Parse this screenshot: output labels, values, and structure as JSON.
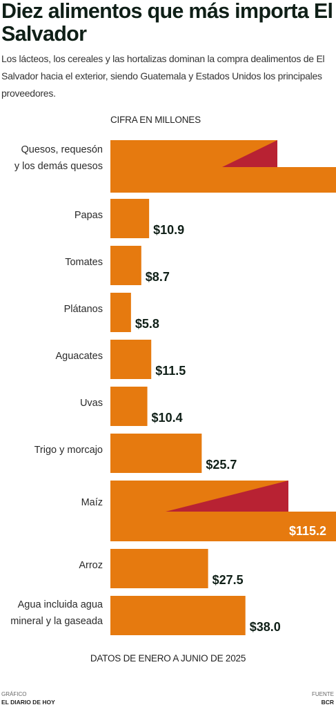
{
  "header": {
    "title": "Diez alimentos que más importa El Salvador",
    "subtitle": "Los lácteos, los cereales y las hortalizas dominan la compra dealimentos de El Salvador hacia el exterior, siendo Guatemala y Estados Unidos los principales proveedores."
  },
  "units_label": "CIFRA EN MILLONES",
  "note": "DATOS DE ENERO A JUNIO DE 2025",
  "footer": {
    "credit_label": "GRÁFICO",
    "credit_name": "EL DIARIO DE HOY",
    "source_label": "FUENTE",
    "source_name": "BCR"
  },
  "colors": {
    "bar": "#e67a0f",
    "accent": "#b82233",
    "text_dark": "#0f1f17",
    "text_in_bar": "#ffffff"
  },
  "chart_data": {
    "type": "bar",
    "orientation": "horizontal",
    "categories": [
      "Quesos, requesón y los demás quesos",
      "Papas",
      "Tomates",
      "Plátanos",
      "Aguacates",
      "Uvas",
      "Trigo y morcajo",
      "Maíz",
      "Arroz",
      "Agua incluida agua mineral y la gaseada"
    ],
    "values": [
      null,
      10.9,
      8.7,
      5.8,
      11.5,
      10.4,
      25.7,
      115.2,
      27.5,
      38.0
    ],
    "value_labels": [
      "",
      "$10.9",
      "$8.7",
      "$5.8",
      "$11.5",
      "$10.4",
      "$25.7",
      "$115.2",
      "$27.5",
      "$38.0"
    ],
    "broken_bars": [
      0,
      7
    ],
    "title": "Diez alimentos que más importa El Salvador",
    "xlabel": "CIFRA EN MILLONES",
    "ylabel": "",
    "legend": "none",
    "grid": false
  }
}
